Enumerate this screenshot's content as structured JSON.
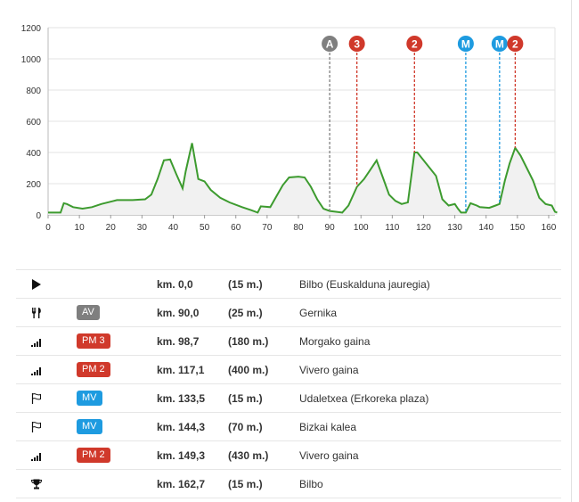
{
  "chart_data": {
    "type": "area",
    "xlim": [
      0,
      162
    ],
    "ylim": [
      0,
      1200
    ],
    "x_ticks": [
      "0",
      "10",
      "20",
      "30",
      "40",
      "50",
      "60",
      "70",
      "80",
      "90",
      "100",
      "110",
      "120",
      "130",
      "140",
      "150",
      "160"
    ],
    "y_ticks": [
      "0",
      "200",
      "400",
      "600",
      "800",
      "1000",
      "1200"
    ],
    "profile": [
      [
        0,
        15
      ],
      [
        4,
        15
      ],
      [
        5,
        75
      ],
      [
        6,
        70
      ],
      [
        8,
        50
      ],
      [
        11,
        40
      ],
      [
        14,
        50
      ],
      [
        17,
        70
      ],
      [
        22,
        95
      ],
      [
        27,
        95
      ],
      [
        31,
        100
      ],
      [
        33,
        130
      ],
      [
        35,
        230
      ],
      [
        37,
        350
      ],
      [
        39,
        355
      ],
      [
        41,
        260
      ],
      [
        43,
        170
      ],
      [
        44,
        280
      ],
      [
        46,
        460
      ],
      [
        48,
        230
      ],
      [
        50,
        215
      ],
      [
        52,
        160
      ],
      [
        55,
        110
      ],
      [
        58,
        80
      ],
      [
        62,
        50
      ],
      [
        65,
        30
      ],
      [
        67,
        15
      ],
      [
        68,
        55
      ],
      [
        71,
        50
      ],
      [
        73,
        120
      ],
      [
        75,
        190
      ],
      [
        77,
        240
      ],
      [
        80,
        245
      ],
      [
        82,
        240
      ],
      [
        84,
        180
      ],
      [
        86,
        100
      ],
      [
        88,
        40
      ],
      [
        90,
        25
      ],
      [
        92,
        20
      ],
      [
        94,
        15
      ],
      [
        96,
        60
      ],
      [
        98.7,
        180
      ],
      [
        101,
        230
      ],
      [
        103,
        290
      ],
      [
        105,
        350
      ],
      [
        107,
        240
      ],
      [
        109,
        130
      ],
      [
        111,
        90
      ],
      [
        113,
        70
      ],
      [
        115,
        80
      ],
      [
        117.1,
        400
      ],
      [
        118,
        400
      ],
      [
        120,
        350
      ],
      [
        122,
        300
      ],
      [
        124,
        250
      ],
      [
        126,
        100
      ],
      [
        128,
        60
      ],
      [
        130,
        70
      ],
      [
        131,
        40
      ],
      [
        132,
        15
      ],
      [
        133.5,
        15
      ],
      [
        135,
        75
      ],
      [
        137,
        60
      ],
      [
        138,
        50
      ],
      [
        141,
        45
      ],
      [
        143,
        60
      ],
      [
        144.3,
        70
      ],
      [
        146,
        220
      ],
      [
        147.5,
        330
      ],
      [
        149.3,
        430
      ],
      [
        151,
        380
      ],
      [
        153,
        300
      ],
      [
        155,
        220
      ],
      [
        157,
        110
      ],
      [
        159,
        70
      ],
      [
        161,
        60
      ],
      [
        162,
        20
      ],
      [
        162.7,
        15
      ]
    ],
    "markers": [
      {
        "km": 90.0,
        "label": "A",
        "color": "#7f7f7f"
      },
      {
        "km": 98.7,
        "label": "3",
        "color": "#d0392b"
      },
      {
        "km": 117.1,
        "label": "2",
        "color": "#d0392b"
      },
      {
        "km": 133.5,
        "label": "M",
        "color": "#1e9be0"
      },
      {
        "km": 144.3,
        "label": "M",
        "color": "#1e9be0"
      },
      {
        "km": 149.3,
        "label": "2",
        "color": "#d0392b"
      }
    ],
    "line_color": "#3d9b2f",
    "fill_color": "#f1f1f1",
    "grid": true
  },
  "rows": [
    {
      "icon": "play-icon",
      "badge": "",
      "badge_color": "",
      "km": "km. 0,0",
      "alt": "(15 m.)",
      "name": "Bilbo (Euskalduna jauregia)"
    },
    {
      "icon": "fork-knife-icon",
      "badge": "AV",
      "badge_color": "grey",
      "km": "km. 90,0",
      "alt": "(25 m.)",
      "name": "Gernika"
    },
    {
      "icon": "climb-icon",
      "badge": "PM 3",
      "badge_color": "red",
      "km": "km. 98,7",
      "alt": "(180 m.)",
      "name": "Morgako gaina"
    },
    {
      "icon": "climb-icon",
      "badge": "PM 2",
      "badge_color": "red",
      "km": "km. 117,1",
      "alt": "(400 m.)",
      "name": "Vivero gaina"
    },
    {
      "icon": "flag-icon",
      "badge": "MV",
      "badge_color": "blue",
      "km": "km. 133,5",
      "alt": "(15 m.)",
      "name": "Udaletxea (Erkoreka plaza)"
    },
    {
      "icon": "flag-icon",
      "badge": "MV",
      "badge_color": "blue",
      "km": "km. 144,3",
      "alt": "(70 m.)",
      "name": "Bizkai kalea"
    },
    {
      "icon": "climb-icon",
      "badge": "PM 2",
      "badge_color": "red",
      "km": "km. 149,3",
      "alt": "(430 m.)",
      "name": "Vivero gaina"
    },
    {
      "icon": "trophy-icon",
      "badge": "",
      "badge_color": "",
      "km": "km. 162,7",
      "alt": "(15 m.)",
      "name": "Bilbo"
    }
  ]
}
